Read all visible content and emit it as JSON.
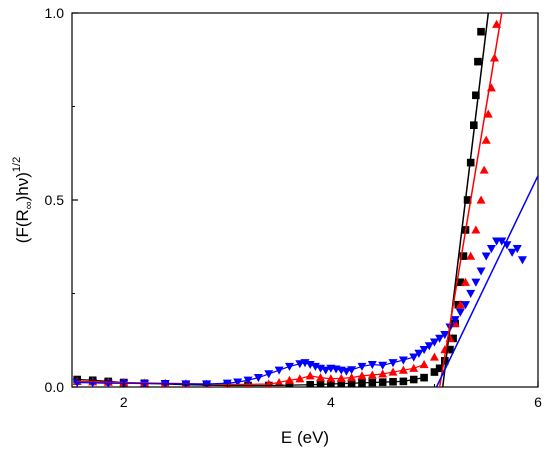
{
  "chart_data": {
    "type": "scatter",
    "xlabel": "E (eV)",
    "ylabel": {
      "prefix": "(F(R",
      "sub": "∞",
      "middle": ")hν)",
      "sup": "1/2"
    },
    "xlim": [
      1.5,
      6.0
    ],
    "ylim": [
      0.0,
      1.0
    ],
    "x_ticks": [
      {
        "value": 2,
        "label": "2"
      },
      {
        "value": 4,
        "label": "4"
      },
      {
        "value": 6,
        "label": "6"
      }
    ],
    "y_ticks": [
      {
        "value": 0.0,
        "label": "0.0"
      },
      {
        "value": 0.5,
        "label": "0.5"
      },
      {
        "value": 1.0,
        "label": "1.0"
      }
    ],
    "grid": false,
    "legend": "none",
    "series": [
      {
        "marker": "square",
        "color": "#000000",
        "points": [
          [
            1.55,
            0.02
          ],
          [
            1.7,
            0.018
          ],
          [
            1.85,
            0.015
          ],
          [
            2.0,
            0.012
          ],
          [
            2.2,
            0.01
          ],
          [
            2.4,
            0.008
          ],
          [
            2.6,
            0.006
          ],
          [
            2.8,
            0.005
          ],
          [
            3.0,
            0.004
          ],
          [
            3.2,
            0.004
          ],
          [
            3.4,
            0.004
          ],
          [
            3.6,
            0.005
          ],
          [
            3.8,
            0.006
          ],
          [
            3.9,
            0.007
          ],
          [
            4.0,
            0.008
          ],
          [
            4.1,
            0.009
          ],
          [
            4.2,
            0.01
          ],
          [
            4.3,
            0.011
          ],
          [
            4.4,
            0.012
          ],
          [
            4.5,
            0.013
          ],
          [
            4.6,
            0.014
          ],
          [
            4.7,
            0.015
          ],
          [
            4.8,
            0.02
          ],
          [
            4.9,
            0.025
          ],
          [
            5.0,
            0.04
          ],
          [
            5.05,
            0.05
          ],
          [
            5.1,
            0.07
          ],
          [
            5.15,
            0.1
          ],
          [
            5.18,
            0.13
          ],
          [
            5.2,
            0.17
          ],
          [
            5.23,
            0.22
          ],
          [
            5.25,
            0.28
          ],
          [
            5.28,
            0.35
          ],
          [
            5.3,
            0.42
          ],
          [
            5.32,
            0.5
          ],
          [
            5.35,
            0.6
          ],
          [
            5.38,
            0.7
          ],
          [
            5.4,
            0.78
          ],
          [
            5.42,
            0.87
          ],
          [
            5.45,
            0.95
          ]
        ],
        "fit": {
          "x": [
            5.08,
            5.52
          ],
          "y": [
            0.0,
            1.0
          ]
        }
      },
      {
        "marker": "triangle-up",
        "color": "#ff0000",
        "points": [
          [
            1.55,
            0.015
          ],
          [
            1.7,
            0.014
          ],
          [
            1.85,
            0.013
          ],
          [
            2.0,
            0.012
          ],
          [
            2.2,
            0.011
          ],
          [
            2.4,
            0.01
          ],
          [
            2.6,
            0.009
          ],
          [
            2.8,
            0.008
          ],
          [
            3.0,
            0.007
          ],
          [
            3.2,
            0.007
          ],
          [
            3.4,
            0.008
          ],
          [
            3.5,
            0.012
          ],
          [
            3.6,
            0.018
          ],
          [
            3.7,
            0.022
          ],
          [
            3.8,
            0.03
          ],
          [
            3.9,
            0.025
          ],
          [
            4.0,
            0.022
          ],
          [
            4.1,
            0.023
          ],
          [
            4.2,
            0.025
          ],
          [
            4.3,
            0.03
          ],
          [
            4.4,
            0.032
          ],
          [
            4.5,
            0.035
          ],
          [
            4.6,
            0.04
          ],
          [
            4.7,
            0.045
          ],
          [
            4.8,
            0.05
          ],
          [
            4.9,
            0.06
          ],
          [
            5.0,
            0.08
          ],
          [
            5.1,
            0.1
          ],
          [
            5.15,
            0.13
          ],
          [
            5.2,
            0.17
          ],
          [
            5.25,
            0.22
          ],
          [
            5.3,
            0.28
          ],
          [
            5.35,
            0.35
          ],
          [
            5.4,
            0.42
          ],
          [
            5.45,
            0.5
          ],
          [
            5.48,
            0.58
          ],
          [
            5.5,
            0.66
          ],
          [
            5.52,
            0.73
          ],
          [
            5.55,
            0.8
          ],
          [
            5.58,
            0.88
          ],
          [
            5.6,
            0.97
          ]
        ],
        "fit": {
          "x": [
            5.05,
            5.65
          ],
          "y": [
            0.0,
            1.0
          ]
        }
      },
      {
        "marker": "triangle-down",
        "color": "#0000ff",
        "points": [
          [
            1.55,
            0.012
          ],
          [
            1.7,
            0.011
          ],
          [
            1.85,
            0.01
          ],
          [
            2.0,
            0.01
          ],
          [
            2.2,
            0.009
          ],
          [
            2.4,
            0.009
          ],
          [
            2.6,
            0.008
          ],
          [
            2.8,
            0.008
          ],
          [
            3.0,
            0.01
          ],
          [
            3.1,
            0.013
          ],
          [
            3.2,
            0.018
          ],
          [
            3.3,
            0.025
          ],
          [
            3.4,
            0.035
          ],
          [
            3.5,
            0.045
          ],
          [
            3.6,
            0.055
          ],
          [
            3.7,
            0.062
          ],
          [
            3.75,
            0.065
          ],
          [
            3.8,
            0.06
          ],
          [
            3.85,
            0.055
          ],
          [
            3.9,
            0.05
          ],
          [
            3.95,
            0.045
          ],
          [
            4.0,
            0.05
          ],
          [
            4.05,
            0.048
          ],
          [
            4.1,
            0.045
          ],
          [
            4.15,
            0.042
          ],
          [
            4.2,
            0.046
          ],
          [
            4.3,
            0.055
          ],
          [
            4.4,
            0.06
          ],
          [
            4.5,
            0.058
          ],
          [
            4.6,
            0.065
          ],
          [
            4.7,
            0.072
          ],
          [
            4.8,
            0.08
          ],
          [
            4.85,
            0.09
          ],
          [
            4.9,
            0.1
          ],
          [
            4.95,
            0.11
          ],
          [
            5.0,
            0.12
          ],
          [
            5.05,
            0.13
          ],
          [
            5.1,
            0.14
          ],
          [
            5.15,
            0.16
          ],
          [
            5.2,
            0.18
          ],
          [
            5.25,
            0.2
          ],
          [
            5.3,
            0.22
          ],
          [
            5.35,
            0.25
          ],
          [
            5.4,
            0.28
          ],
          [
            5.45,
            0.31
          ],
          [
            5.5,
            0.35
          ],
          [
            5.55,
            0.37
          ],
          [
            5.6,
            0.39
          ],
          [
            5.65,
            0.39
          ],
          [
            5.7,
            0.38
          ],
          [
            5.75,
            0.36
          ],
          [
            5.8,
            0.37
          ],
          [
            5.85,
            0.34
          ]
        ],
        "fit": {
          "x": [
            5.02,
            6.0
          ],
          "y": [
            0.0,
            0.565
          ]
        }
      }
    ]
  }
}
